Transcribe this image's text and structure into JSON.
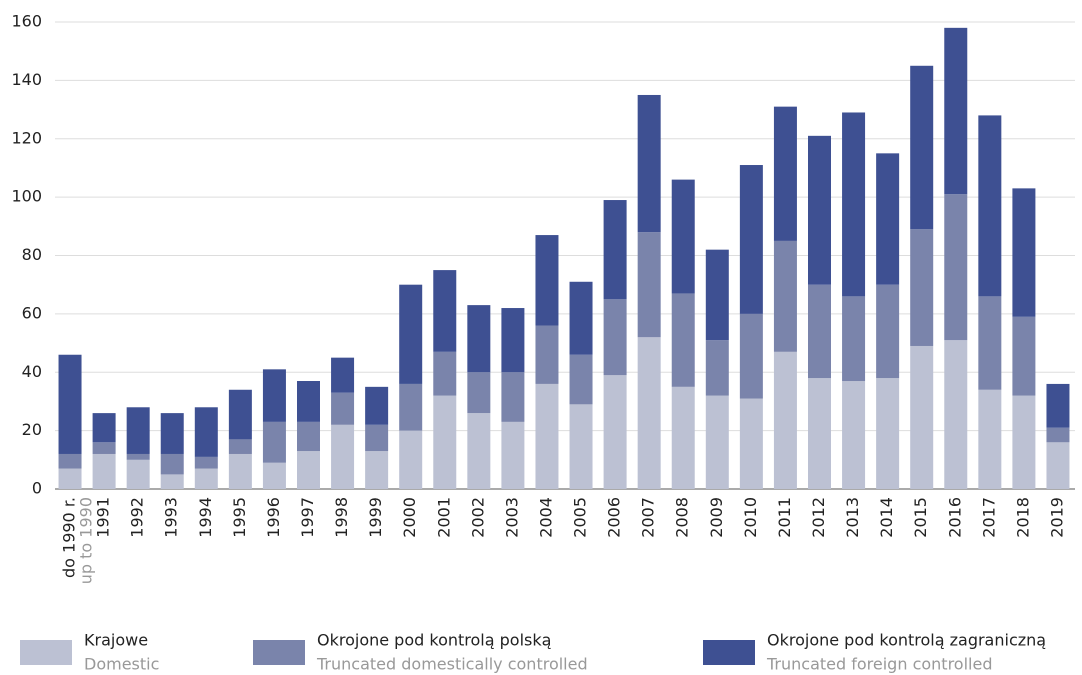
{
  "chart_data": {
    "type": "stacked_bar",
    "categories": [
      "do 1990 r.",
      "1991",
      "1992",
      "1993",
      "1994",
      "1995",
      "1996",
      "1997",
      "1998",
      "1999",
      "2000",
      "2001",
      "2002",
      "2003",
      "2004",
      "2005",
      "2006",
      "2007",
      "2008",
      "2009",
      "2010",
      "2011",
      "2012",
      "2013",
      "2014",
      "2015",
      "2016",
      "2017",
      "2018",
      "2019"
    ],
    "categories_en": [
      "up to 1990",
      null,
      null,
      null,
      null,
      null,
      null,
      null,
      null,
      null,
      null,
      null,
      null,
      null,
      null,
      null,
      null,
      null,
      null,
      null,
      null,
      null,
      null,
      null,
      null,
      null,
      null,
      null,
      null,
      null
    ],
    "series": [
      {
        "name": "Krajowe",
        "name_en": "Domestic",
        "color": "#bcc1d3",
        "values": [
          7,
          12,
          10,
          5,
          7,
          12,
          9,
          13,
          22,
          13,
          20,
          32,
          26,
          23,
          36,
          29,
          39,
          52,
          35,
          32,
          31,
          47,
          38,
          37,
          38,
          49,
          51,
          34,
          32,
          16
        ]
      },
      {
        "name": "Okrojone pod kontrolą polską",
        "name_en": "Truncated domestically controlled",
        "color": "#7a84ab",
        "values": [
          5,
          4,
          2,
          7,
          4,
          5,
          14,
          10,
          11,
          9,
          16,
          15,
          14,
          17,
          20,
          17,
          26,
          36,
          32,
          19,
          29,
          38,
          32,
          29,
          32,
          40,
          50,
          32,
          27,
          5
        ]
      },
      {
        "name": "Okrojone pod kontrolą zagraniczną",
        "name_en": "Truncated foreign controlled",
        "color": "#3e5092",
        "values": [
          34,
          10,
          16,
          14,
          17,
          17,
          18,
          14,
          12,
          13,
          34,
          28,
          23,
          22,
          31,
          25,
          34,
          47,
          39,
          31,
          51,
          46,
          51,
          63,
          45,
          56,
          57,
          62,
          44,
          15
        ]
      }
    ],
    "ylim": [
      0,
      160
    ],
    "yticks": [
      0,
      20,
      40,
      60,
      80,
      100,
      120,
      140,
      160
    ],
    "grid": true
  }
}
